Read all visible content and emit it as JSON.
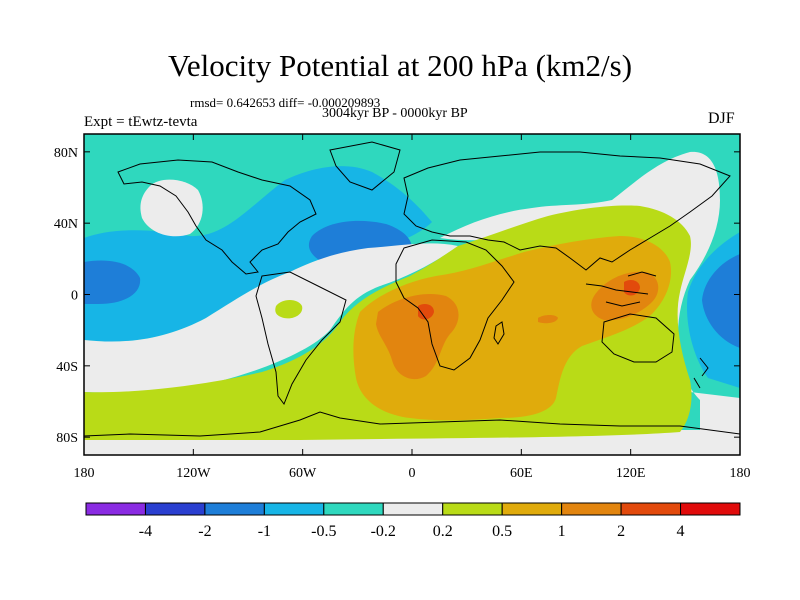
{
  "title": "Velocity Potential at 200 hPa (km2/s)",
  "stats": "rmsd= 0.642653  diff= -0.000209893",
  "period": "3004kyr BP - 0000kyr BP",
  "experiment": "Expt = tEwtz-tevta",
  "season": "DJF",
  "map": {
    "lon_range": [
      -180,
      180
    ],
    "lat_range": [
      -90,
      90
    ],
    "x_ticks": [
      {
        "lon": -180,
        "label": "180"
      },
      {
        "lon": -120,
        "label": "120W"
      },
      {
        "lon": -60,
        "label": "60W"
      },
      {
        "lon": 0,
        "label": "0"
      },
      {
        "lon": 60,
        "label": "60E"
      },
      {
        "lon": 120,
        "label": "120E"
      },
      {
        "lon": 180,
        "label": "180"
      }
    ],
    "y_ticks": [
      {
        "lat": 80,
        "label": "80N"
      },
      {
        "lat": 40,
        "label": "40N"
      },
      {
        "lat": 0,
        "label": "0"
      },
      {
        "lat": -40,
        "label": "40S"
      },
      {
        "lat": -80,
        "label": "80S"
      }
    ]
  },
  "colorbar": {
    "labels": [
      "-4",
      "-2",
      "-1",
      "-0.5",
      "-0.2",
      "0.2",
      "0.5",
      "1",
      "2",
      "4"
    ],
    "colors": [
      "#8a2be2",
      "#2a3fd0",
      "#1e7ed8",
      "#17b5e6",
      "#2fd8be",
      "#ececec",
      "#b9db17",
      "#e0ab0c",
      "#e2850f",
      "#e24a0c",
      "#e00b0b"
    ]
  }
}
